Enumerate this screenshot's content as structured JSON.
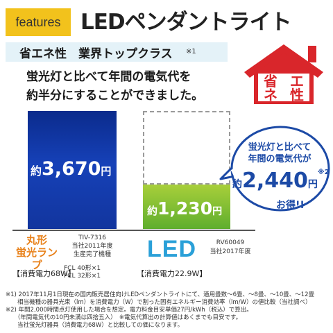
{
  "header": {
    "badge": "features",
    "title": "LEDペンダントライト"
  },
  "highlight": {
    "title": "省エネ性　業界トップクラス",
    "note": "※1"
  },
  "lead": {
    "line1": "蛍光灯と比べて年間の電気代を",
    "line2": "約半分にすることができました。"
  },
  "badge_house": {
    "char1": "省",
    "char2": "エ",
    "char3": "ネ",
    "char4": "性"
  },
  "chart_data": {
    "type": "bar",
    "categories": [
      "丸形蛍光ランプ",
      "LED"
    ],
    "values": [
      3670,
      1230
    ],
    "labels": [
      "約3,670円",
      "約1,230円"
    ],
    "colors": [
      "#12359e",
      "#7ac031"
    ]
  },
  "fluorescent": {
    "cost_prefix": "約",
    "cost_value": "3,670",
    "cost_unit": "円",
    "name_line1": "丸形",
    "name_line2": "蛍光ランプ",
    "model": "TIV-7316",
    "model_note1": "当社2011年度",
    "model_note2": "生産完了機種",
    "lamp1": "FCL 40形×1",
    "lamp2": "FCL 32形×1",
    "power": "【消費電力68W】"
  },
  "led": {
    "cost_prefix": "約",
    "cost_value": "1,230",
    "cost_unit": "円",
    "name": "LED",
    "model": "RV60049",
    "model_note": "当社2017年度",
    "power": "【消費電力22.9W】"
  },
  "bubble": {
    "line1": "蛍光灯と比べて",
    "line2": "年間の電気代が",
    "savings_prefix": "約",
    "savings_value": "2,440",
    "savings_unit": "円",
    "savings_note": "※2",
    "line3": "お得!!"
  },
  "notes": [
    "※1) 2017年11月1日現在の国内販売居住向けLEDペンダントライトにて、適用畳数～6畳、～8畳、～10畳、～12畳",
    "　　相当機種の器具光束（lm）を消費電力（W）で割った固有エネルギー消費効率（lm/W）の値比較（当社調べ）",
    "※2) 年間2,000時間点灯使用した場合を想定。電力料金目安単価27円/kWh（税込）で算出。",
    "　　（年間電気代の10円未満は四捨五入）　※電気代算出の計算値はあくまでも目安です。",
    "　　当社蛍光灯器具（消費電力68W）と比較しての価になります。"
  ]
}
